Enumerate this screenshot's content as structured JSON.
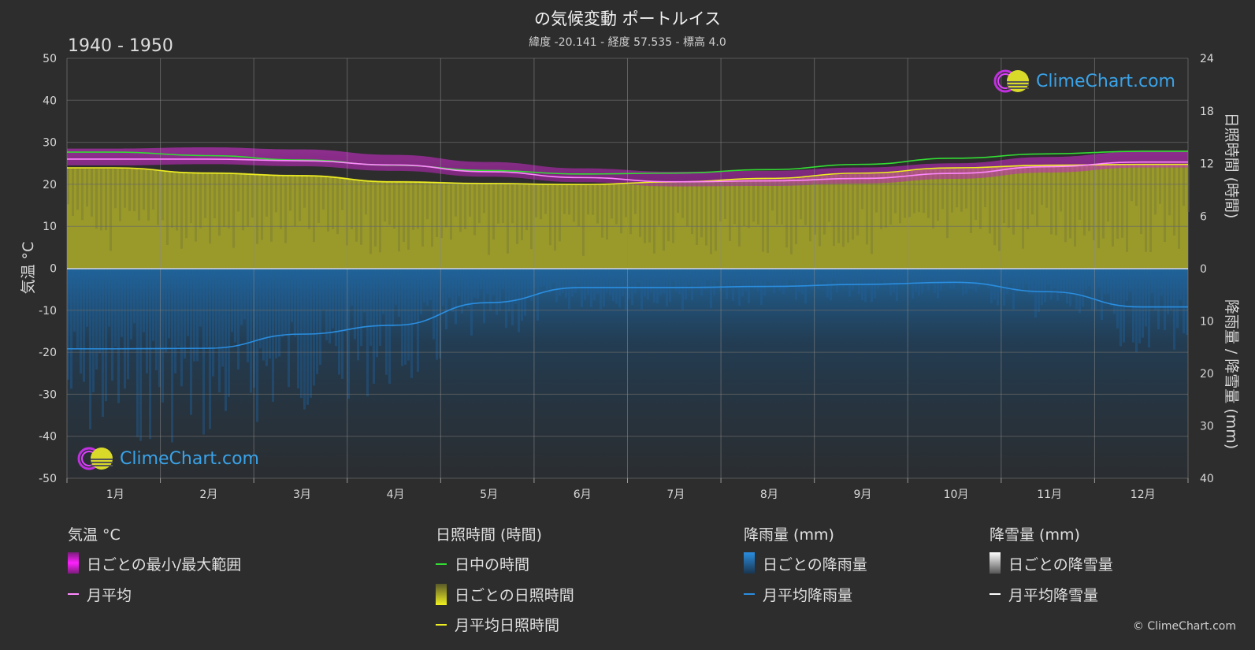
{
  "title": "の気候変動 ポートルイス",
  "subtitle": "緯度 -20.141 - 経度 57.535 - 標高 4.0",
  "period": "1940 - 1950",
  "copyright": "© ClimeChart.com",
  "logo_text": "ClimeChart.com",
  "colors": {
    "background": "#2d2d2d",
    "temp_range": "#e020e0",
    "temp_avg": "#ff88ff",
    "daylight": "#33dd33",
    "sunshine_fill": "#a9a92a",
    "sunshine_avg": "#eeee22",
    "rain": "#1f6fb0",
    "rain_avg": "#2a8ee0",
    "snow_avg": "#ffffff"
  },
  "legend": {
    "temperature": {
      "header": "気温 °C",
      "range": "日ごとの最小/最大範囲",
      "avg": "月平均"
    },
    "sunshine": {
      "header": "日照時間 (時間)",
      "daylight": "日中の時間",
      "daily": "日ごとの日照時間",
      "avg": "月平均日照時間"
    },
    "rain": {
      "header": "降雨量 (mm)",
      "daily": "日ごとの降雨量",
      "avg": "月平均降雨量"
    },
    "snow": {
      "header": "降雪量 (mm)",
      "daily": "日ごとの降雪量",
      "avg": "月平均降雪量"
    }
  },
  "chart_data": {
    "type": "line",
    "categories": [
      "1月",
      "2月",
      "3月",
      "4月",
      "5月",
      "6月",
      "7月",
      "8月",
      "9月",
      "10月",
      "11月",
      "12月"
    ],
    "y_left": {
      "label": "気温 °C",
      "range": [
        -50,
        50
      ],
      "ticks": [
        50,
        40,
        30,
        20,
        10,
        0,
        -10,
        -20,
        -30,
        -40,
        -50
      ]
    },
    "y_right_top": {
      "label": "日照時間 (時間)",
      "range": [
        0,
        24
      ],
      "ticks": [
        24,
        18,
        12,
        6,
        0
      ]
    },
    "y_right_bottom": {
      "label": "降雨量 / 降雪量 (mm)",
      "range": [
        0,
        40
      ],
      "ticks": [
        0,
        10,
        20,
        30,
        40
      ]
    },
    "grid": true,
    "series": [
      {
        "name": "日ごとの最小/最大範囲",
        "kind": "band",
        "axis": "temperature",
        "min": [
          24.5,
          24.8,
          24.3,
          23.2,
          21.8,
          20.5,
          19.5,
          19.6,
          20.2,
          21.3,
          22.8,
          24.0
        ],
        "max": [
          28.5,
          28.8,
          28.3,
          27.0,
          25.3,
          23.8,
          23.0,
          23.2,
          24.0,
          25.0,
          26.5,
          27.8
        ]
      },
      {
        "name": "月平均",
        "axis": "temperature",
        "values": [
          26.0,
          26.0,
          25.6,
          24.6,
          23.0,
          21.6,
          20.6,
          20.8,
          21.4,
          22.6,
          24.2,
          25.3
        ]
      },
      {
        "name": "日中の時間",
        "axis": "sunshine",
        "values": [
          13.3,
          12.9,
          12.4,
          11.8,
          11.2,
          10.8,
          10.9,
          11.3,
          11.9,
          12.6,
          13.1,
          13.4
        ]
      },
      {
        "name": "日ごとの日照時間",
        "kind": "area",
        "axis": "sunshine",
        "values": [
          11.4,
          11.0,
          10.7,
          10.0,
          9.8,
          9.6,
          9.9,
          10.2,
          10.8,
          11.4,
          11.8,
          11.9
        ]
      },
      {
        "name": "月平均日照時間",
        "axis": "sunshine",
        "values": [
          11.5,
          10.9,
          10.6,
          9.9,
          9.7,
          9.6,
          9.9,
          10.3,
          10.9,
          11.5,
          11.8,
          11.9
        ]
      },
      {
        "name": "月平均降雨量",
        "axis": "precipitation",
        "values": [
          15.3,
          15.2,
          12.5,
          10.8,
          6.5,
          3.6,
          3.6,
          3.4,
          3.0,
          2.6,
          4.4,
          7.3
        ]
      },
      {
        "name": "月平均降雪量",
        "axis": "precipitation",
        "values": [
          0,
          0,
          0,
          0,
          0,
          0,
          0,
          0,
          0,
          0,
          0,
          0
        ]
      }
    ]
  }
}
